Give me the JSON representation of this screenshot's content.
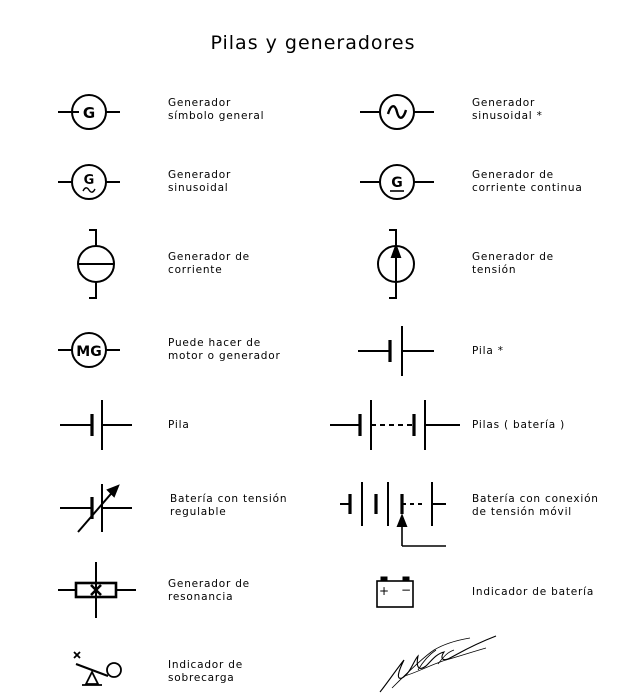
{
  "title": "Pilas y generadores",
  "items": [
    {
      "symbol": "generator-general",
      "lines": [
        "Generador",
        "símbolo general"
      ],
      "glyph": "G"
    },
    {
      "symbol": "generator-sinusoidal-star",
      "lines": [
        "Generador",
        "sinusoidal *"
      ]
    },
    {
      "symbol": "generator-sinusoidal",
      "lines": [
        "Generador",
        "sinusoidal"
      ],
      "glyph": "G"
    },
    {
      "symbol": "generator-dc",
      "lines": [
        "Generador de",
        "corriente continua"
      ],
      "glyph": "G"
    },
    {
      "symbol": "current-generator",
      "lines": [
        "Generador de",
        "corriente"
      ]
    },
    {
      "symbol": "voltage-generator",
      "lines": [
        "Generador de",
        "tensión"
      ]
    },
    {
      "symbol": "motor-generator",
      "lines": [
        "Puede hacer de",
        "motor o generador"
      ],
      "glyph": "MG"
    },
    {
      "symbol": "cell-star",
      "lines": [
        "Pila *"
      ]
    },
    {
      "symbol": "cell",
      "lines": [
        "Pila"
      ]
    },
    {
      "symbol": "cells-battery",
      "lines": [
        "Pilas ( batería )"
      ]
    },
    {
      "symbol": "adjustable-battery",
      "lines": [
        "Batería con tensión",
        "regulable"
      ]
    },
    {
      "symbol": "battery-movable-tap",
      "lines": [
        "Batería con conexión",
        "de tensión móvil"
      ]
    },
    {
      "symbol": "resonance-generator",
      "lines": [
        "Generador de",
        "resonancia"
      ]
    },
    {
      "symbol": "battery-indicator",
      "lines": [
        "Indicador de batería"
      ],
      "terminals": [
        "+",
        "−"
      ]
    },
    {
      "symbol": "overload-indicator",
      "lines": [
        "Indicador de",
        "sobrecarga"
      ]
    }
  ]
}
